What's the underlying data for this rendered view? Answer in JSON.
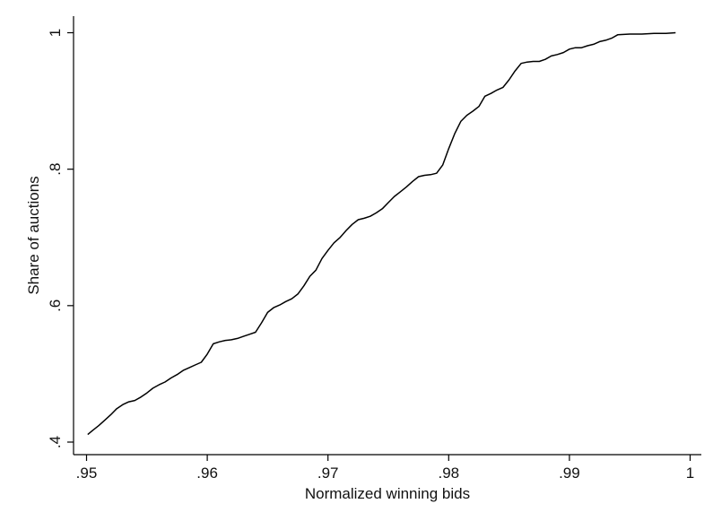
{
  "chart_data": {
    "type": "line",
    "title": "",
    "xlabel": "Normalized winning bids",
    "ylabel": "Share of auctions",
    "xlim": [
      0.95,
      1.0
    ],
    "ylim": [
      0.4,
      1.0
    ],
    "grid": false,
    "legend": "none",
    "line_color": "#000000",
    "x_ticks": [
      {
        "value": 0.95,
        "label": ".95"
      },
      {
        "value": 0.96,
        "label": ".96"
      },
      {
        "value": 0.97,
        "label": ".97"
      },
      {
        "value": 0.98,
        "label": ".98"
      },
      {
        "value": 0.99,
        "label": ".99"
      },
      {
        "value": 1.0,
        "label": "1"
      }
    ],
    "y_ticks": [
      {
        "value": 0.4,
        "label": ".4"
      },
      {
        "value": 0.6,
        "label": ".6"
      },
      {
        "value": 0.8,
        "label": ".8"
      },
      {
        "value": 1.0,
        "label": "1"
      }
    ],
    "series": [
      {
        "x": [
          0.9501,
          0.9505,
          0.951,
          0.9515,
          0.952,
          0.9525,
          0.953,
          0.9535,
          0.954,
          0.9545,
          0.955,
          0.9555,
          0.956,
          0.9565,
          0.957,
          0.9575,
          0.958,
          0.9585,
          0.959,
          0.9595,
          0.96,
          0.9605,
          0.961,
          0.9615,
          0.962,
          0.9625,
          0.963,
          0.9635,
          0.964,
          0.9645,
          0.965,
          0.9655,
          0.966,
          0.9665,
          0.967,
          0.9675,
          0.968,
          0.9685,
          0.969,
          0.9695,
          0.97,
          0.9705,
          0.971,
          0.9715,
          0.972,
          0.9725,
          0.973,
          0.9735,
          0.974,
          0.9745,
          0.975,
          0.9755,
          0.976,
          0.9765,
          0.977,
          0.9775,
          0.978,
          0.9785,
          0.979,
          0.9795,
          0.98,
          0.9805,
          0.981,
          0.9815,
          0.982,
          0.9825,
          0.983,
          0.9835,
          0.984,
          0.9845,
          0.985,
          0.9855,
          0.986,
          0.9865,
          0.987,
          0.9875,
          0.988,
          0.9885,
          0.989,
          0.9895,
          0.99,
          0.9905,
          0.991,
          0.9915,
          0.992,
          0.9925,
          0.993,
          0.9935,
          0.994,
          0.995,
          0.996,
          0.997,
          0.998,
          0.9988
        ],
        "y": [
          0.411,
          0.417,
          0.424,
          0.432,
          0.44,
          0.449,
          0.455,
          0.459,
          0.461,
          0.466,
          0.472,
          0.479,
          0.484,
          0.488,
          0.494,
          0.499,
          0.505,
          0.509,
          0.513,
          0.517,
          0.529,
          0.544,
          0.547,
          0.549,
          0.55,
          0.552,
          0.555,
          0.558,
          0.561,
          0.575,
          0.59,
          0.597,
          0.601,
          0.606,
          0.61,
          0.617,
          0.629,
          0.643,
          0.652,
          0.669,
          0.681,
          0.692,
          0.7,
          0.71,
          0.719,
          0.726,
          0.728,
          0.731,
          0.736,
          0.742,
          0.751,
          0.76,
          0.767,
          0.774,
          0.782,
          0.789,
          0.791,
          0.792,
          0.794,
          0.806,
          0.83,
          0.852,
          0.87,
          0.879,
          0.885,
          0.892,
          0.907,
          0.911,
          0.916,
          0.92,
          0.931,
          0.944,
          0.955,
          0.957,
          0.958,
          0.958,
          0.961,
          0.966,
          0.968,
          0.971,
          0.976,
          0.978,
          0.978,
          0.981,
          0.983,
          0.987,
          0.989,
          0.992,
          0.997,
          0.998,
          0.998,
          0.999,
          0.999,
          1.0
        ]
      }
    ]
  }
}
